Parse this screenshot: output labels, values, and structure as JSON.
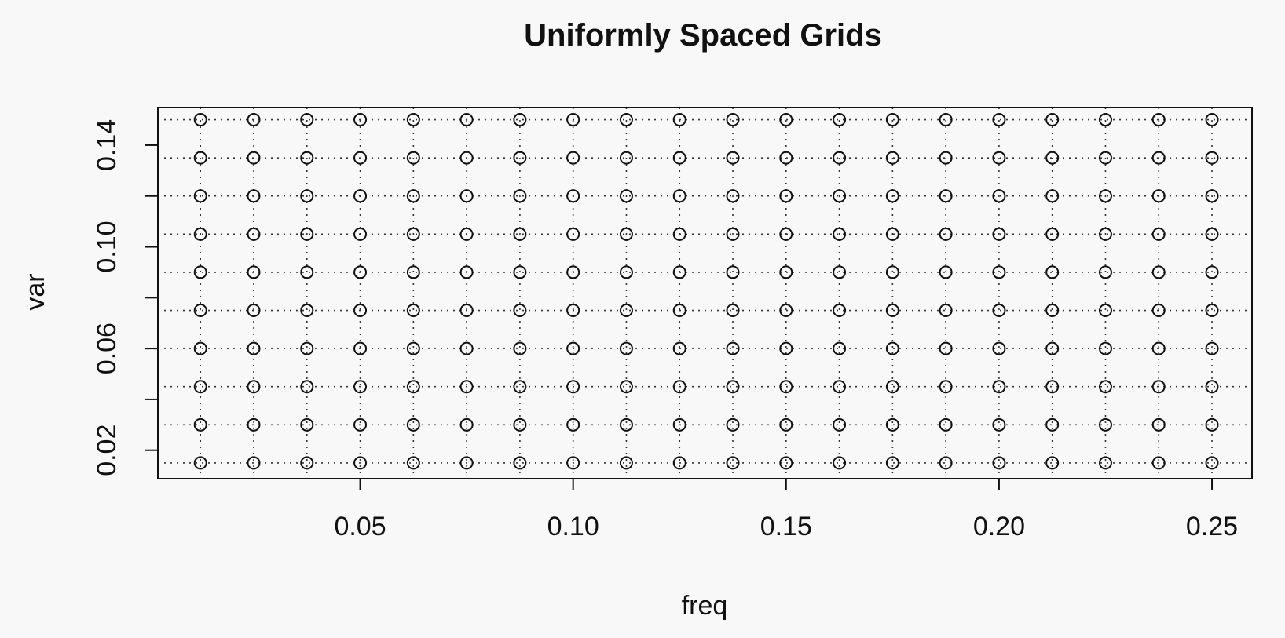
{
  "chart_data": {
    "type": "scatter",
    "title": "Uniformly Spaced Grids",
    "xlabel": "freq",
    "ylabel": "var",
    "xlim": [
      0.0025,
      0.2594
    ],
    "ylim": [
      0.0088,
      0.1548
    ],
    "x_ticks": [
      {
        "value": 0.05,
        "label": "0.05"
      },
      {
        "value": 0.1,
        "label": "0.10"
      },
      {
        "value": 0.15,
        "label": "0.15"
      },
      {
        "value": 0.2,
        "label": "0.20"
      },
      {
        "value": 0.25,
        "label": "0.25"
      }
    ],
    "y_ticks": [
      {
        "value": 0.02,
        "label": "0.02"
      },
      {
        "value": 0.04,
        "label": ""
      },
      {
        "value": 0.06,
        "label": "0.06"
      },
      {
        "value": 0.08,
        "label": ""
      },
      {
        "value": 0.1,
        "label": "0.10"
      },
      {
        "value": 0.12,
        "label": ""
      },
      {
        "value": 0.14,
        "label": "0.14"
      }
    ],
    "grid": "dotted",
    "grid_x": [
      0.0125,
      0.025,
      0.0375,
      0.05,
      0.0625,
      0.075,
      0.0875,
      0.1,
      0.1125,
      0.125,
      0.1375,
      0.15,
      0.1625,
      0.175,
      0.1875,
      0.2,
      0.2125,
      0.225,
      0.2375,
      0.25
    ],
    "grid_y": [
      0.015,
      0.03,
      0.045,
      0.06,
      0.075,
      0.09,
      0.105,
      0.12,
      0.135,
      0.15
    ],
    "marker": "open-circle",
    "colors": {
      "points": "#111111",
      "grid": "#333333",
      "axis": "#111111"
    }
  }
}
